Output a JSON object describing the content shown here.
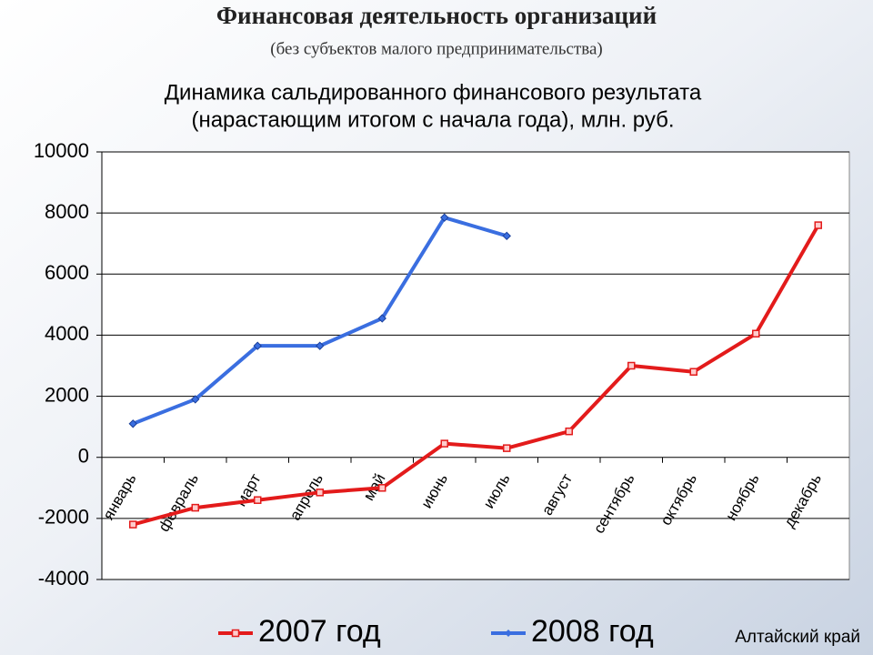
{
  "chart_data": {
    "type": "line",
    "title": "Финансовая деятельность организаций",
    "subtitle": "(без субъектов малого предпринимательства)",
    "chart_title": [
      "Динамика сальдированного финансового результата",
      "(нарастающим итогом с начала года), млн. руб."
    ],
    "footer": "Алтайский край",
    "categories": [
      "январь",
      "февраль",
      "март",
      "апрель",
      "май",
      "июнь",
      "июль",
      "август",
      "сентябрь",
      "октябрь",
      "ноябрь",
      "декабрь"
    ],
    "series": [
      {
        "name": "2007 год",
        "color": "#e31b1b",
        "marker": "square",
        "values": [
          -2200,
          -1650,
          -1400,
          -1150,
          -1000,
          450,
          300,
          850,
          3000,
          2800,
          4050,
          7600
        ]
      },
      {
        "name": "2008 год",
        "color": "#3a6ee0",
        "marker": "diamond",
        "values": [
          1100,
          1900,
          3650,
          3650,
          4550,
          7850,
          7250,
          null,
          null,
          null,
          null,
          null
        ]
      }
    ],
    "ylim": [
      -4000,
      10000
    ],
    "yticks": [
      -4000,
      -2000,
      0,
      2000,
      4000,
      6000,
      8000,
      10000
    ],
    "grid": true,
    "legend": "bottom"
  }
}
